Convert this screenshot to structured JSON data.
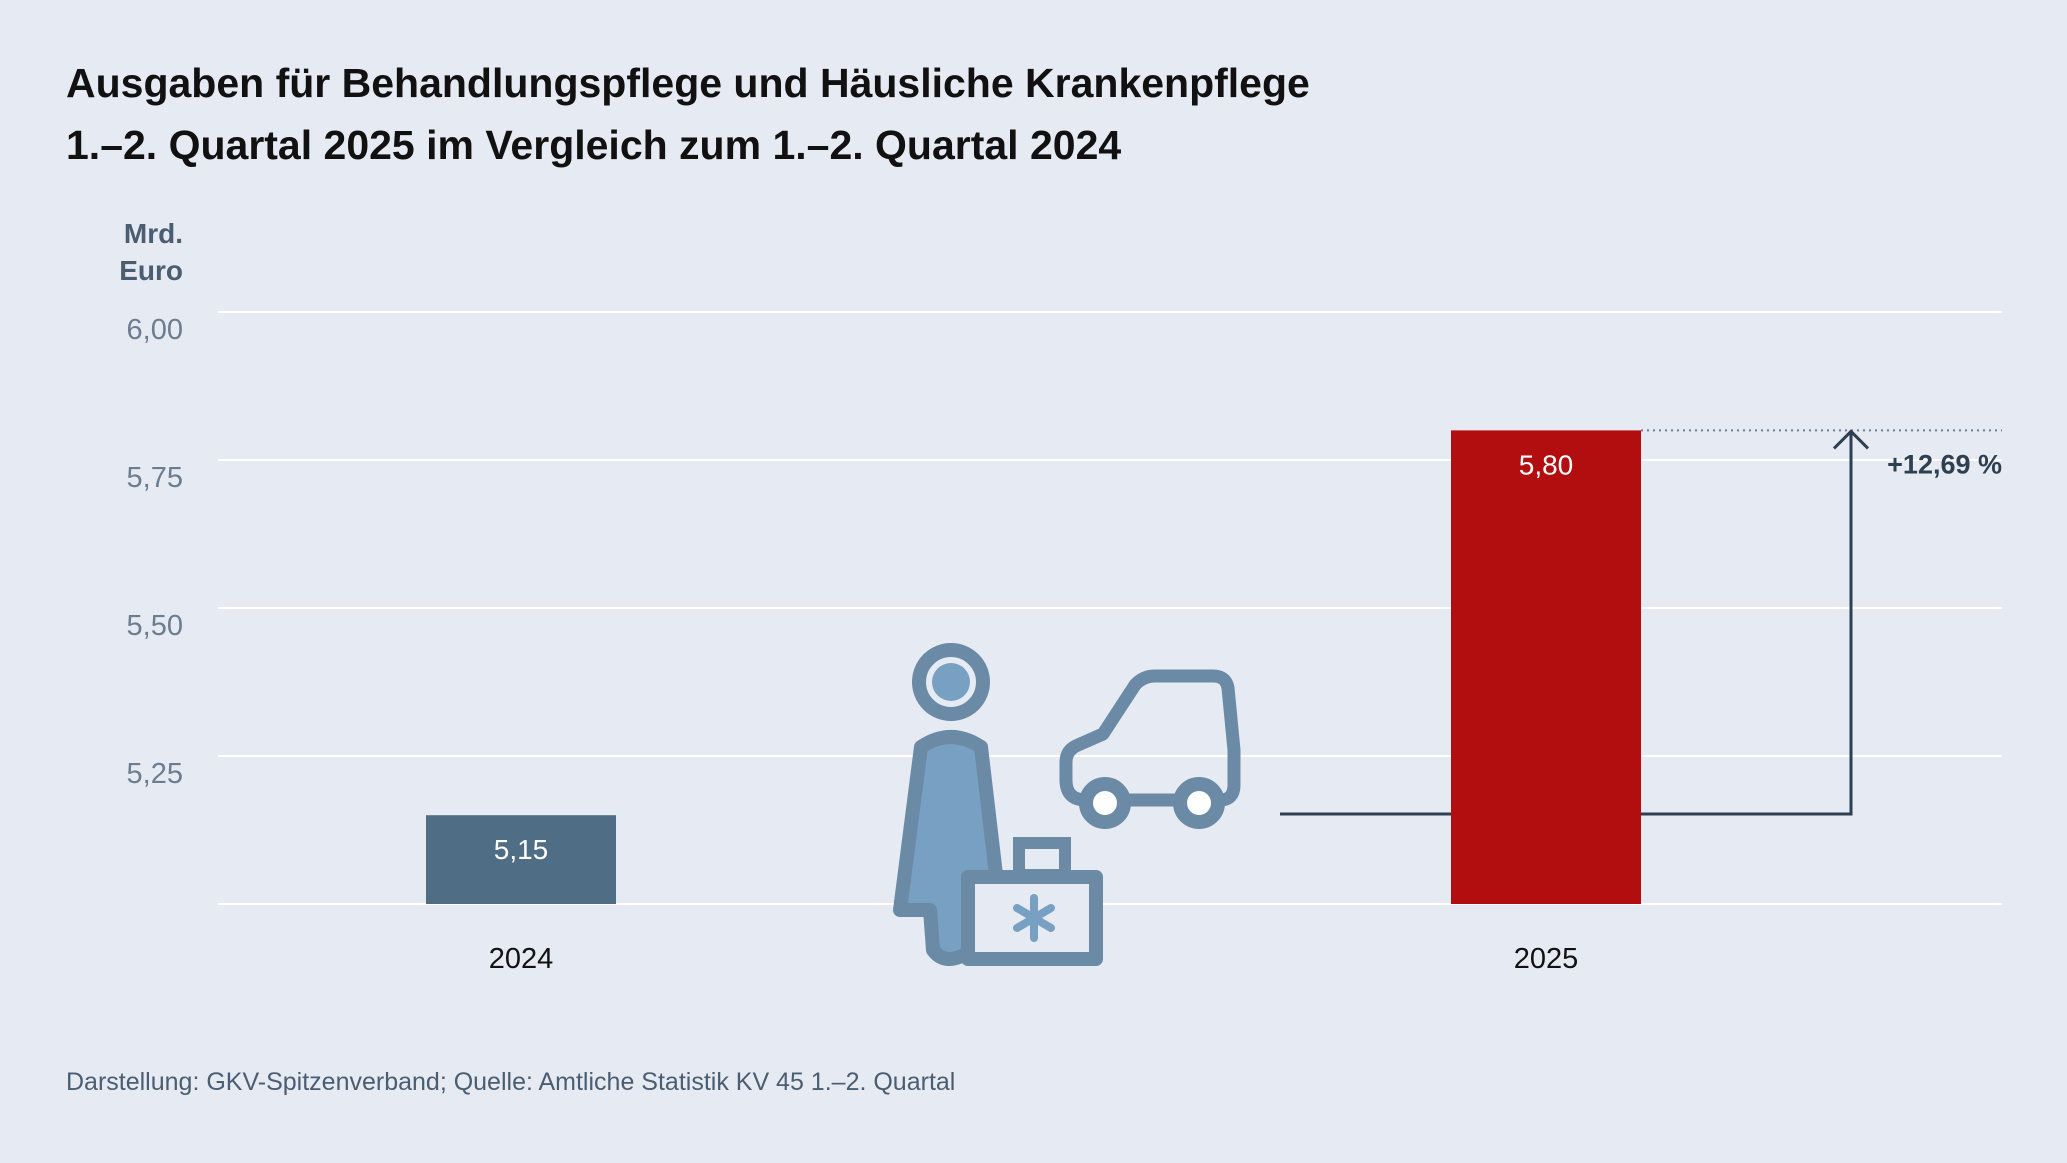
{
  "title_line1": "Ausgaben für Behandlungspflege und Häusliche Krankenpflege",
  "title_line2": "1.–2. Quartal 2025 im Vergleich zum 1.–2. Quartal 2024",
  "unit_line1": "Mrd.",
  "unit_line2": "Euro",
  "source": "Darstellung: GKV-Spitzenverband; Quelle: Amtliche Statistik KV 45 1.–2. Quartal",
  "illustration_icons": [
    "nurse-icon",
    "medical-case-icon",
    "car-icon"
  ],
  "chart_data": {
    "type": "bar",
    "categories": [
      "2024",
      "2025"
    ],
    "values": [
      5.15,
      5.8
    ],
    "value_labels": [
      "5,15",
      "5,80"
    ],
    "colors": [
      "#506d86",
      "#b20e10"
    ],
    "ylim": [
      5.0,
      6.0
    ],
    "yticks": [
      5.25,
      5.5,
      5.75,
      6.0
    ],
    "ytick_labels": [
      "5,25",
      "5,50",
      "5,75",
      "6,00"
    ],
    "grid": true,
    "change_label": "+12,69 %",
    "change_color": "#2e3f50"
  }
}
